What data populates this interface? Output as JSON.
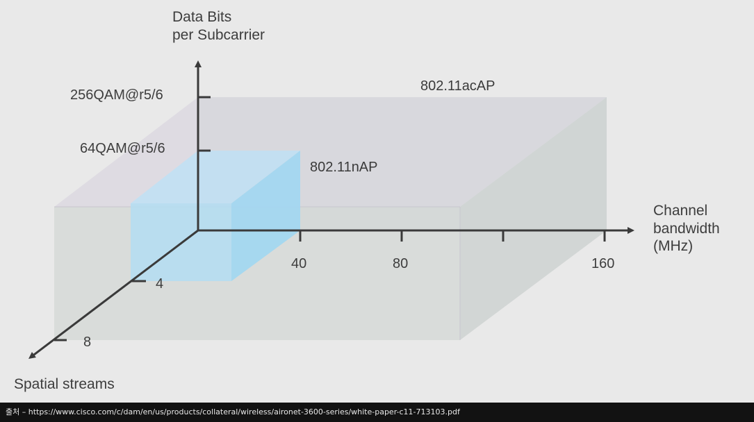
{
  "axes": {
    "y": {
      "title_line1": "Data Bits",
      "title_line2": "per Subcarrier",
      "ticks": [
        "256QAM@r5/6",
        "64QAM@r5/6"
      ]
    },
    "x": {
      "title_line1": "Channel",
      "title_line2": "bandwidth",
      "title_line3": "(MHz)",
      "ticks": [
        "40",
        "80",
        "160"
      ]
    },
    "z": {
      "title": "Spatial streams",
      "ticks": [
        "4",
        "8"
      ]
    }
  },
  "boxes": {
    "ac": {
      "label": "802.11acAP",
      "color": "#d8d6df"
    },
    "n": {
      "label": "802.11nAP",
      "color": "#a8d8f0"
    }
  },
  "footer": {
    "text": "출처 – https://www.cisco.com/c/dam/en/us/products/collateral/wireless/aironet-3600-series/white-paper-c11-713103.pdf"
  }
}
